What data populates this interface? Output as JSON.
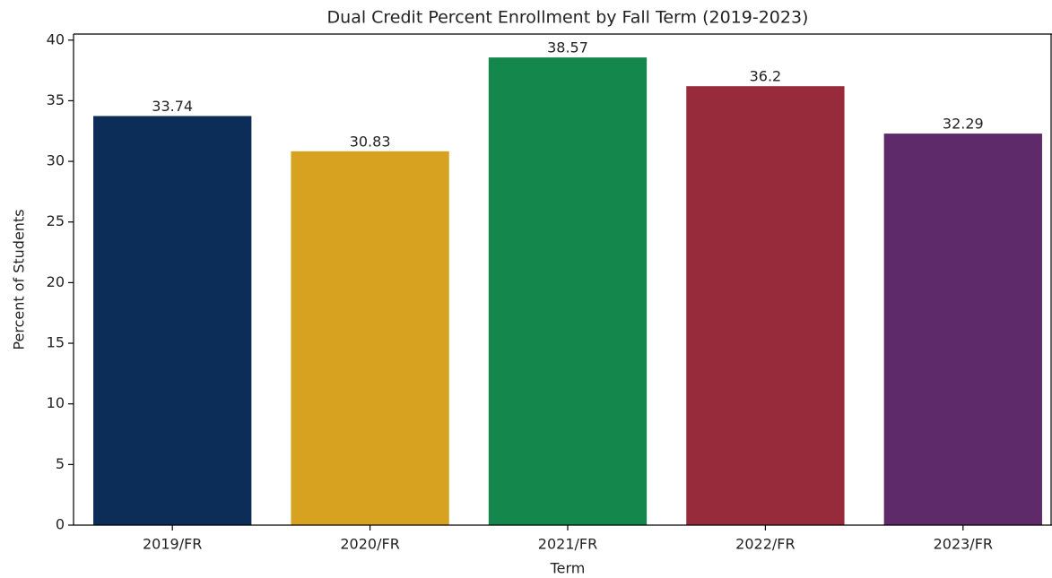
{
  "chart_data": {
    "type": "bar",
    "title": "Dual Credit Percent Enrollment by Fall Term (2019-2023)",
    "x_label": "Term",
    "y_label": "Percent of Students",
    "categories": [
      "2019/FR",
      "2020/FR",
      "2021/FR",
      "2022/FR",
      "2023/FR"
    ],
    "values": [
      33.74,
      30.83,
      38.57,
      36.2,
      32.29
    ],
    "colors": [
      "#0c2d57",
      "#d7a220",
      "#14884c",
      "#982b3b",
      "#5e2a6a"
    ],
    "ylim": [
      0,
      40.5
    ],
    "yticks": [
      0,
      5,
      10,
      15,
      20,
      25,
      30,
      35,
      40
    ],
    "grid": false
  }
}
